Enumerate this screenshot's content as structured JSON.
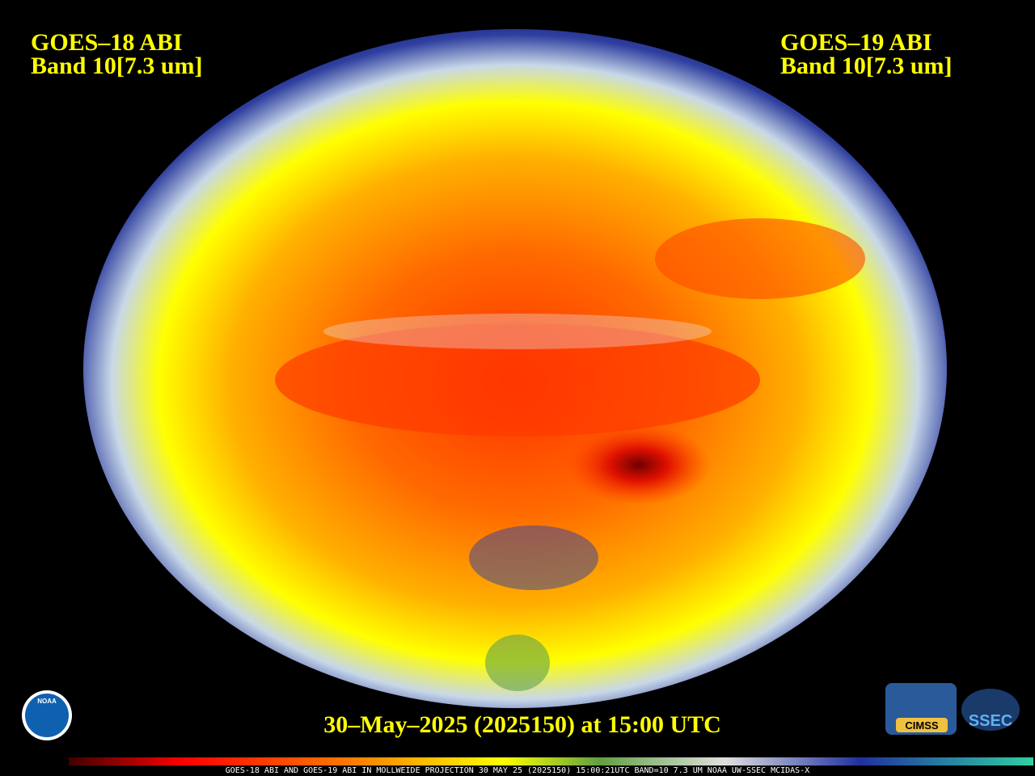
{
  "left_label": {
    "satellite": "GOES–18 ABI",
    "band": "Band 10[7.3 um]"
  },
  "right_label": {
    "satellite": "GOES–19 ABI",
    "band": "Band 10[7.3 um]"
  },
  "timestamp": "30–May–2025 (2025150) at 15:00 UTC",
  "colorbar_caption": "GOES-18 ABI AND GOES-19 ABI IN MOLLWEIDE PROJECTION 30 MAY 25 (2025150) 15:00:21UTC BAND=10 7.3 UM NOAA UW-SSEC MCIDAS-X",
  "logos": {
    "noaa": "NOAA",
    "cimss": "CIMSS",
    "ssec": "SSEC"
  }
}
